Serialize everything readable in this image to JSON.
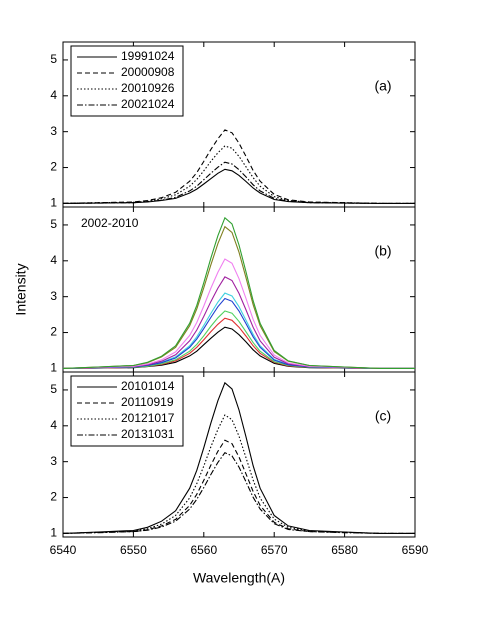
{
  "chart_data": [
    {
      "type": "line",
      "panel_label": "(a)",
      "legend": "upper left",
      "x": [
        6540,
        6545,
        6550,
        6552,
        6554,
        6556,
        6558,
        6559,
        6560,
        6561,
        6562,
        6563,
        6564,
        6565,
        6566,
        6567,
        6568,
        6570,
        6572,
        6575,
        6580,
        6585,
        6590
      ],
      "xlim": [
        6540,
        6590
      ],
      "xticks": [
        6540,
        6550,
        6560,
        6570,
        6580,
        6590
      ],
      "ylim": [
        0.9,
        5.5
      ],
      "yticks": [
        1,
        2,
        3,
        4,
        5
      ],
      "series": [
        {
          "name": "19991024",
          "color": "#000000",
          "dash": "solid",
          "values": [
            1,
            1.01,
            1.02,
            1.04,
            1.08,
            1.14,
            1.29,
            1.4,
            1.54,
            1.69,
            1.84,
            1.95,
            1.91,
            1.78,
            1.61,
            1.43,
            1.29,
            1.11,
            1.05,
            1.02,
            1.01,
            1,
            1
          ]
        },
        {
          "name": "20000908",
          "color": "#000000",
          "dash": "dash",
          "values": [
            1,
            1.02,
            1.04,
            1.08,
            1.16,
            1.31,
            1.62,
            1.86,
            2.17,
            2.5,
            2.8,
            3.05,
            2.97,
            2.68,
            2.31,
            1.92,
            1.62,
            1.25,
            1.1,
            1.04,
            1.02,
            1,
            1
          ]
        },
        {
          "name": "20010926",
          "color": "#000000",
          "dash": "dot",
          "values": [
            1,
            1.02,
            1.03,
            1.06,
            1.13,
            1.24,
            1.48,
            1.67,
            1.91,
            2.17,
            2.41,
            2.6,
            2.54,
            2.31,
            2.02,
            1.72,
            1.48,
            1.19,
            1.08,
            1.03,
            1.02,
            1,
            1
          ]
        },
        {
          "name": "20021024",
          "color": "#000000",
          "dash": "dashdot",
          "values": [
            1,
            1.01,
            1.02,
            1.05,
            1.09,
            1.17,
            1.35,
            1.48,
            1.66,
            1.84,
            2.01,
            2.15,
            2.1,
            1.94,
            1.74,
            1.52,
            1.35,
            1.14,
            1.06,
            1.02,
            1.01,
            1,
            1
          ]
        }
      ]
    },
    {
      "type": "line",
      "panel_label": "(b)",
      "annotation": "2002-2010",
      "ylabel": "Intensity",
      "x": [
        6540,
        6545,
        6550,
        6552,
        6554,
        6556,
        6558,
        6559,
        6560,
        6561,
        6562,
        6563,
        6564,
        6565,
        6566,
        6567,
        6568,
        6570,
        6572,
        6575,
        6580,
        6585,
        6590
      ],
      "xlim": [
        6540,
        6590
      ],
      "xticks": [
        6540,
        6550,
        6560,
        6570,
        6580,
        6590
      ],
      "ylim": [
        0.9,
        5.5
      ],
      "yticks": [
        1,
        2,
        3,
        4,
        5
      ],
      "series": [
        {
          "color": "#000000",
          "dash": "solid",
          "values": [
            1,
            1.01,
            1.02,
            1.05,
            1.09,
            1.17,
            1.35,
            1.48,
            1.66,
            1.84,
            2.01,
            2.15,
            2.1,
            1.94,
            1.74,
            1.52,
            1.35,
            1.14,
            1.06,
            1.02,
            1.01,
            1,
            1
          ]
        },
        {
          "color": "#e03030",
          "dash": "solid",
          "values": [
            1,
            1.01,
            1.03,
            1.06,
            1.11,
            1.21,
            1.42,
            1.59,
            1.8,
            2.02,
            2.23,
            2.4,
            2.34,
            2.15,
            1.9,
            1.63,
            1.42,
            1.17,
            1.07,
            1.03,
            1.01,
            1,
            1
          ]
        },
        {
          "color": "#50d060",
          "dash": "solid",
          "values": [
            1,
            1.02,
            1.03,
            1.06,
            1.13,
            1.24,
            1.48,
            1.67,
            1.91,
            2.17,
            2.41,
            2.6,
            2.54,
            2.31,
            2.02,
            1.72,
            1.48,
            1.19,
            1.08,
            1.03,
            1.02,
            1,
            1
          ]
        },
        {
          "color": "#40d0e0",
          "dash": "solid",
          "values": [
            1,
            1.02,
            1.04,
            1.08,
            1.17,
            1.32,
            1.63,
            1.88,
            2.2,
            2.53,
            2.85,
            3.1,
            3.02,
            2.72,
            2.34,
            1.95,
            1.63,
            1.25,
            1.11,
            1.04,
            1.02,
            1,
            1
          ]
        },
        {
          "color": "#2040d0",
          "dash": "solid",
          "values": [
            1,
            1.02,
            1.04,
            1.08,
            1.16,
            1.29,
            1.59,
            1.82,
            2.11,
            2.42,
            2.72,
            2.95,
            2.87,
            2.6,
            2.25,
            1.88,
            1.59,
            1.23,
            1.1,
            1.04,
            1.02,
            1,
            1
          ]
        },
        {
          "color": "#a020a0",
          "dash": "solid",
          "values": [
            1,
            1.03,
            1.05,
            1.1,
            1.2,
            1.38,
            1.77,
            2.07,
            2.45,
            2.86,
            3.24,
            3.55,
            3.45,
            3.09,
            2.63,
            2.15,
            1.77,
            1.31,
            1.13,
            1.05,
            1.03,
            1,
            1
          ]
        },
        {
          "color": "#f080f0",
          "dash": "solid",
          "values": [
            1,
            1.03,
            1.06,
            1.12,
            1.24,
            1.46,
            1.92,
            2.28,
            2.74,
            3.23,
            3.68,
            4.05,
            3.93,
            3.5,
            2.95,
            2.37,
            1.92,
            1.37,
            1.15,
            1.06,
            1.03,
            1,
            1
          ]
        },
        {
          "color": "#808020",
          "dash": "solid",
          "values": [
            1,
            1.04,
            1.08,
            1.16,
            1.32,
            1.59,
            2.19,
            2.66,
            3.25,
            3.88,
            4.48,
            4.95,
            4.79,
            4.24,
            3.53,
            2.78,
            2.19,
            1.47,
            1.2,
            1.08,
            1.04,
            1,
            1
          ]
        },
        {
          "color": "#30a030",
          "dash": "solid",
          "values": [
            1,
            1.04,
            1.08,
            1.17,
            1.34,
            1.63,
            2.26,
            2.76,
            3.39,
            4.07,
            4.7,
            5.2,
            5.03,
            4.44,
            3.69,
            2.89,
            2.26,
            1.5,
            1.21,
            1.08,
            1.04,
            1,
            1
          ]
        }
      ]
    },
    {
      "type": "line",
      "panel_label": "(c)",
      "legend": "upper left",
      "xlabel": "Wavelength(A)",
      "x": [
        6540,
        6545,
        6550,
        6552,
        6554,
        6556,
        6558,
        6559,
        6560,
        6561,
        6562,
        6563,
        6564,
        6565,
        6566,
        6567,
        6568,
        6570,
        6572,
        6575,
        6580,
        6585,
        6590
      ],
      "xlim": [
        6540,
        6590
      ],
      "xticks": [
        6540,
        6550,
        6560,
        6570,
        6580,
        6590
      ],
      "ylim": [
        0.9,
        5.5
      ],
      "yticks": [
        1,
        2,
        3,
        4,
        5
      ],
      "series": [
        {
          "name": "20101014",
          "color": "#000000",
          "dash": "solid",
          "values": [
            1,
            1.04,
            1.08,
            1.17,
            1.34,
            1.63,
            2.26,
            2.76,
            3.39,
            4.07,
            4.7,
            5.2,
            5.03,
            4.44,
            3.69,
            2.89,
            2.26,
            1.5,
            1.21,
            1.08,
            1.04,
            1,
            1
          ]
        },
        {
          "name": "20110919",
          "color": "#000000",
          "dash": "dash",
          "values": [
            1,
            1.03,
            1.05,
            1.1,
            1.21,
            1.39,
            1.78,
            2.09,
            2.48,
            2.9,
            3.29,
            3.6,
            3.5,
            3.13,
            2.66,
            2.17,
            1.78,
            1.31,
            1.13,
            1.05,
            1.03,
            1,
            1
          ]
        },
        {
          "name": "20121017",
          "color": "#000000",
          "dash": "dot",
          "values": [
            1,
            1.03,
            1.07,
            1.13,
            1.26,
            1.5,
            1.99,
            2.39,
            2.88,
            3.41,
            3.9,
            4.3,
            4.17,
            3.71,
            3.11,
            2.49,
            1.99,
            1.4,
            1.17,
            1.07,
            1.03,
            1,
            1
          ]
        },
        {
          "name": "20131031",
          "color": "#000000",
          "dash": "dashdot",
          "values": [
            1,
            1.02,
            1.05,
            1.09,
            1.18,
            1.34,
            1.68,
            1.95,
            2.28,
            2.64,
            2.98,
            3.25,
            3.16,
            2.85,
            2.44,
            2.01,
            1.68,
            1.27,
            1.11,
            1.05,
            1.02,
            1,
            1
          ]
        }
      ]
    }
  ]
}
